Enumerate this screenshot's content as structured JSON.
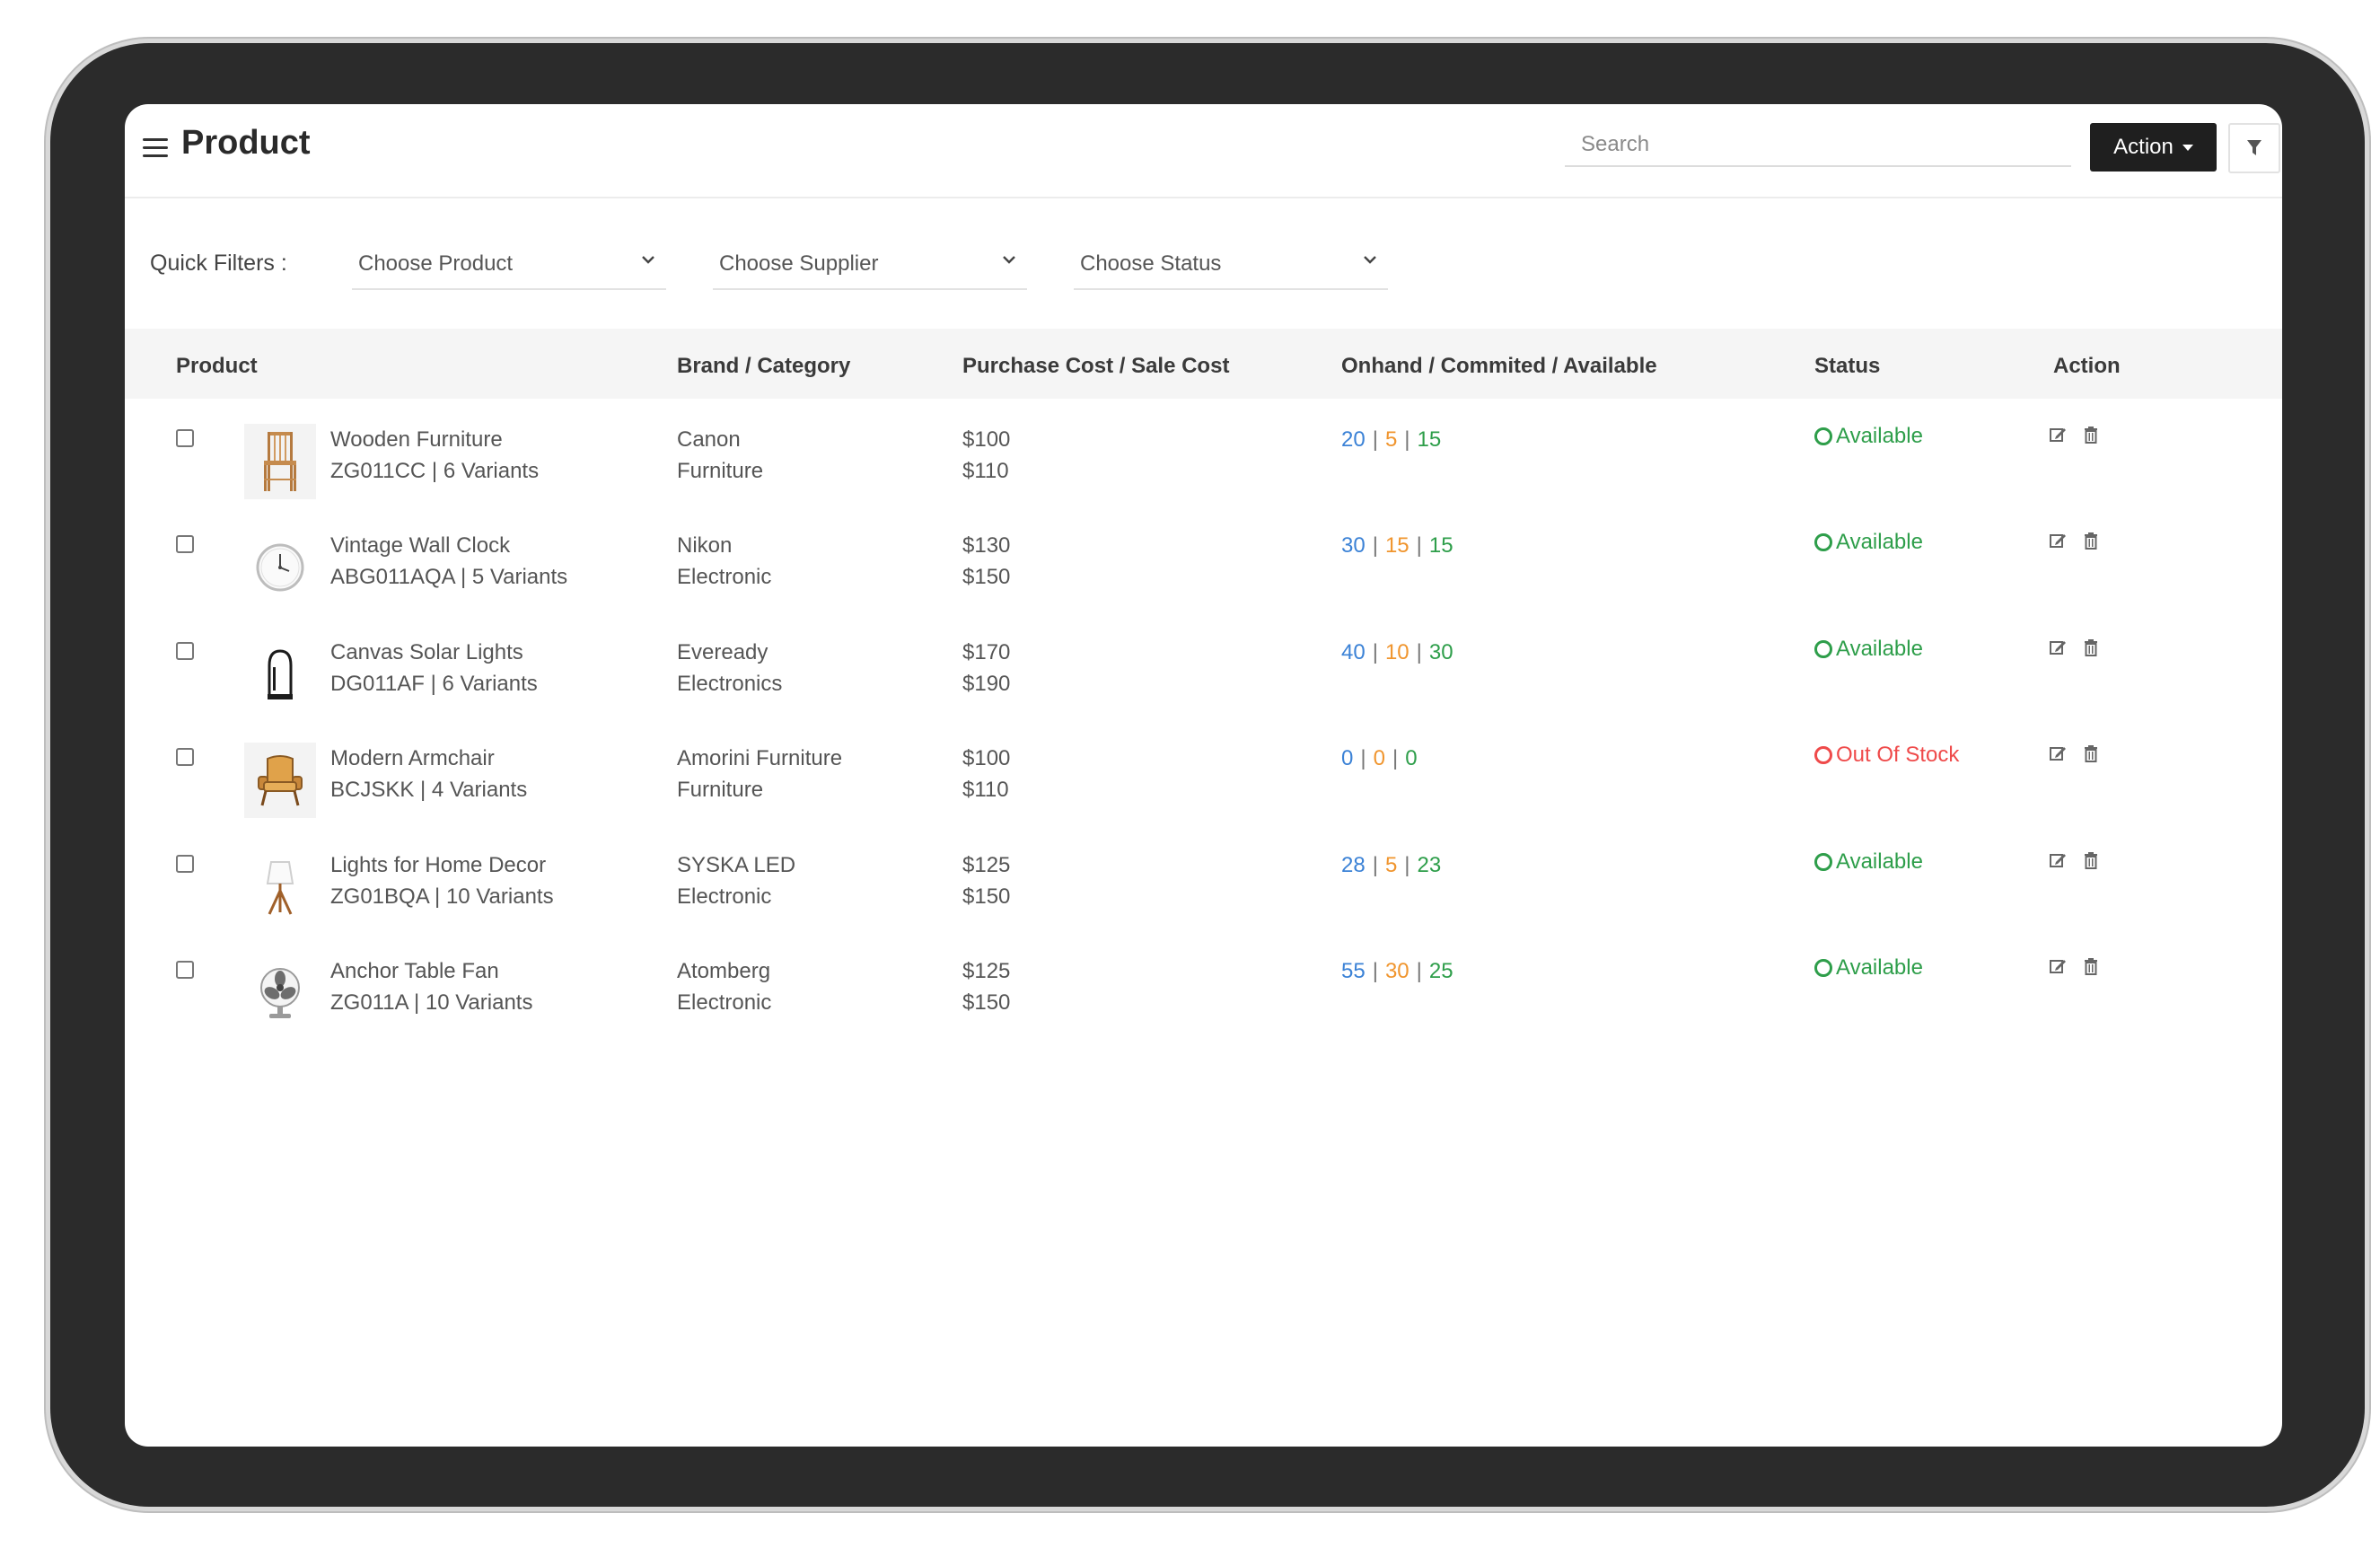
{
  "header": {
    "title": "Product",
    "search_placeholder": "Search",
    "action_label": "Action"
  },
  "filters": {
    "label": "Quick Filters :",
    "product": "Choose Product",
    "supplier": "Choose Supplier",
    "status": "Choose Status"
  },
  "columns": [
    "Product",
    "Brand / Category",
    "Purchase Cost / Sale Cost",
    "Onhand / Commited / Available",
    "Status",
    "Action"
  ],
  "rows": [
    {
      "name": "Wooden Furniture",
      "sku": "ZG011CC | 6 Variants",
      "brand": "Canon",
      "category": "Furniture",
      "purchase": "$100",
      "sale": "$110",
      "onhand": "20",
      "committed": "5",
      "available": "15",
      "status": "Available"
    },
    {
      "name": "Vintage Wall Clock",
      "sku": "ABG011AQA | 5 Variants",
      "brand": "Nikon",
      "category": "Electronic",
      "purchase": "$130",
      "sale": "$150",
      "onhand": "30",
      "committed": "15",
      "available": "15",
      "status": "Available"
    },
    {
      "name": "Canvas Solar Lights",
      "sku": "DG011AF | 6 Variants",
      "brand": "Eveready",
      "category": "Electronics",
      "purchase": "$170",
      "sale": "$190",
      "onhand": "40",
      "committed": "10",
      "available": "30",
      "status": "Available"
    },
    {
      "name": "Modern Armchair",
      "sku": "BCJSKK | 4 Variants",
      "brand": "Amorini Furniture",
      "category": "Furniture",
      "purchase": "$100",
      "sale": "$110",
      "onhand": "0",
      "committed": "0",
      "available": "0",
      "status": "Out Of Stock"
    },
    {
      "name": "Lights for Home Decor",
      "sku": "ZG01BQA | 10 Variants",
      "brand": "SYSKA LED",
      "category": "Electronic",
      "purchase": "$125",
      "sale": "$150",
      "onhand": "28",
      "committed": "5",
      "available": "23",
      "status": "Available"
    },
    {
      "name": "Anchor Table Fan",
      "sku": "ZG011A | 10 Variants",
      "brand": "Atomberg",
      "category": "Electronic",
      "purchase": "$125",
      "sale": "$150",
      "onhand": "55",
      "committed": "30",
      "available": "25",
      "status": "Available"
    }
  ],
  "colors": {
    "onhand": "#3b82d6",
    "committed": "#f0952e",
    "available": "#2e9e4a",
    "out_of_stock": "#ef4a4a",
    "action_button": "#1f1f1f"
  },
  "icons": [
    "menu-icon",
    "chevron-down-icon",
    "filter-icon",
    "edit-icon",
    "trash-icon",
    "status-ring-icon"
  ]
}
